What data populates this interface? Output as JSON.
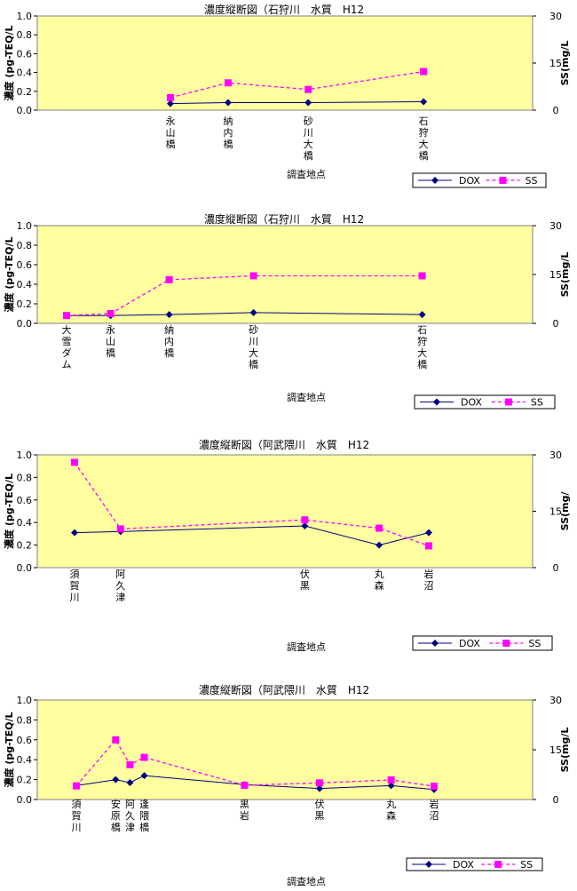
{
  "chart_data": [
    {
      "type": "line",
      "title": "濃度縦断図（石狩川　水質　H12",
      "ylabel": "濃度 (pg-TEQ/L",
      "y2label": "SS(mg/L",
      "xlabel": "調査地点",
      "ylim": [
        0,
        1
      ],
      "y_ticks": [
        "0.0",
        "0.2",
        "0.4",
        "0.6",
        "0.8",
        "1.0"
      ],
      "y2lim": [
        0,
        30
      ],
      "y2_ticks": [
        "0",
        "15",
        "30"
      ],
      "categories": [
        "永山橋",
        "納内橋",
        "砂川大橋",
        "石狩大橋"
      ],
      "x_positions": [
        0.18,
        0.36,
        0.61,
        0.97
      ],
      "series": [
        {
          "name": "DOX",
          "axis": "left",
          "color": "#000080",
          "marker": "diamond",
          "values": [
            0.07,
            0.08,
            0.08,
            0.09
          ]
        },
        {
          "name": "SS",
          "axis": "right",
          "color": "#ff00ff",
          "marker": "square",
          "dashed": true,
          "values": [
            4.0,
            8.7,
            6.6,
            12.3
          ]
        }
      ],
      "legend_position": "bottom-right",
      "grid": false,
      "background": "#ffffa0"
    },
    {
      "type": "line",
      "title": "濃度縦断図（石狩川　水質　H12",
      "ylabel": "濃度 (pg-TEQ/L",
      "y2label": "SS(mg/L",
      "xlabel": "調査地点",
      "ylim": [
        0,
        1
      ],
      "y_ticks": [
        "0.0",
        "0.2",
        "0.4",
        "0.6",
        "0.8",
        "1.0"
      ],
      "y2lim": [
        0,
        30
      ],
      "y2_ticks": [
        "0",
        "15",
        "30"
      ],
      "categories": [
        "大雪ダム",
        "永山橋",
        "納内橋",
        "砂川大橋",
        "石狩大橋"
      ],
      "x_positions": [
        0.0,
        0.12,
        0.28,
        0.51,
        0.97
      ],
      "series": [
        {
          "name": "DOX",
          "axis": "left",
          "color": "#000080",
          "marker": "diamond",
          "values": [
            0.08,
            0.08,
            0.09,
            0.11,
            0.09
          ]
        },
        {
          "name": "SS",
          "axis": "right",
          "color": "#ff00ff",
          "marker": "square",
          "dashed": true,
          "values": [
            2.4,
            3.0,
            13.4,
            14.6,
            14.6
          ]
        }
      ],
      "legend_position": "bottom-right",
      "grid": false,
      "background": "#ffffa0"
    },
    {
      "type": "line",
      "title": "濃度縦断図（阿武隈川　水質　H12",
      "ylabel": "濃度 (pg-TEQ/L",
      "y2label": "SS(mg/",
      "xlabel": "調査地点",
      "ylim": [
        0,
        1
      ],
      "y_ticks": [
        "0.0",
        "0.2",
        "0.4",
        "0.6",
        "0.8",
        "1.0"
      ],
      "y2lim": [
        0,
        30
      ],
      "y2_ticks": [
        "0",
        "15",
        "30"
      ],
      "categories": [
        "須賀川",
        "阿久津",
        "伏黒",
        "丸森",
        "岩沼"
      ],
      "x_positions": [
        0.0,
        0.13,
        0.65,
        0.86,
        1.0
      ],
      "series": [
        {
          "name": "DOX",
          "axis": "left",
          "color": "#000080",
          "marker": "diamond",
          "values": [
            0.31,
            0.32,
            0.37,
            0.2,
            0.31
          ]
        },
        {
          "name": "SS",
          "axis": "right",
          "color": "#ff00ff",
          "marker": "square",
          "dashed": true,
          "values": [
            28.0,
            10.3,
            12.7,
            10.5,
            5.8
          ]
        }
      ],
      "legend_position": "bottom-right",
      "grid": false,
      "background": "#ffffa0"
    },
    {
      "type": "line",
      "title": "濃度縦断図（阿武隈川　水質　H12",
      "ylabel": "濃度 (pg-TEQ/L",
      "y2label": "SS(mg/L",
      "xlabel": "調査地点",
      "ylim": [
        0,
        1
      ],
      "y_ticks": [
        "0.0",
        "0.2",
        "0.4",
        "0.6",
        "0.8",
        "1.0"
      ],
      "y2lim": [
        0,
        30
      ],
      "y2_ticks": [
        "0",
        "15",
        "30"
      ],
      "categories": [
        "須賀川",
        "安原橋",
        "阿久津",
        "逢隈橋",
        "黒岩",
        "伏黒",
        "丸森",
        "岩沼"
      ],
      "x_positions": [
        0.0,
        0.11,
        0.15,
        0.19,
        0.47,
        0.68,
        0.88,
        1.0
      ],
      "series": [
        {
          "name": "DOX",
          "axis": "left",
          "color": "#000080",
          "marker": "diamond",
          "values": [
            0.14,
            0.2,
            0.17,
            0.24,
            0.15,
            0.11,
            0.14,
            0.1
          ]
        },
        {
          "name": "SS",
          "axis": "right",
          "color": "#ff00ff",
          "marker": "square",
          "dashed": true,
          "values": [
            4.1,
            18.0,
            10.5,
            12.7,
            4.3,
            5.0,
            5.9,
            4.0
          ]
        }
      ],
      "legend_position": "bottom-right",
      "grid": false,
      "background": "#ffffa0"
    }
  ]
}
